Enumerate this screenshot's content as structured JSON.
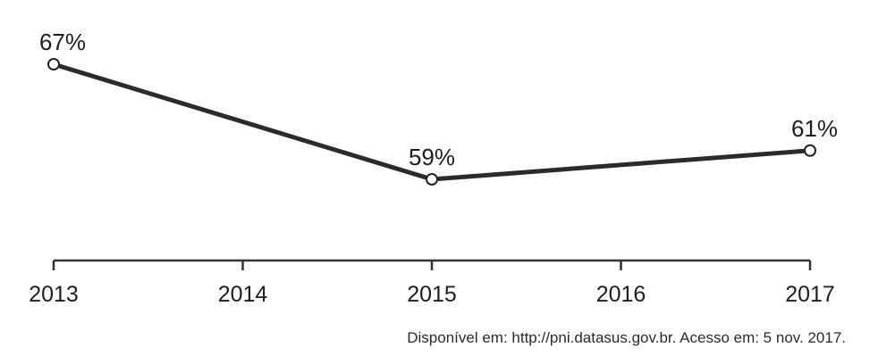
{
  "chart_data": {
    "type": "line",
    "x": [
      "2013",
      "2014",
      "2015",
      "2016",
      "2017"
    ],
    "series": [
      {
        "points": [
          {
            "x": "2013",
            "y": 67,
            "label": "67%"
          },
          {
            "x": "2015",
            "y": 59,
            "label": "59%"
          },
          {
            "x": "2017",
            "y": 61,
            "label": "61%"
          }
        ]
      }
    ],
    "xlabel": "",
    "ylabel": "",
    "grid": false,
    "line_color": "#2b2b2b"
  },
  "source": "Disponível em: http://pni.datasus.gov.br. Acesso em: 5 nov. 2017."
}
